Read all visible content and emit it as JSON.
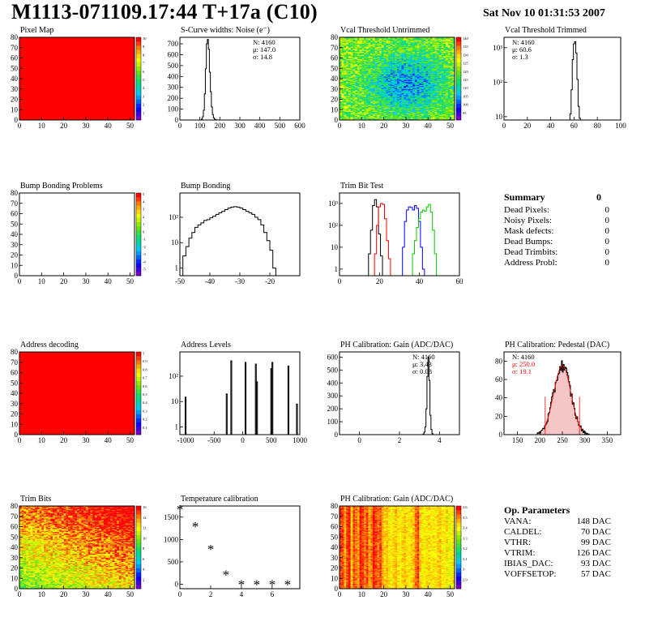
{
  "header": {
    "title": "M1113-071109.17:44 T+17a (C10)",
    "date": "Sat Nov 10 01:31:53 2007"
  },
  "summary": {
    "title": "Summary",
    "total": "0",
    "rows": [
      {
        "label": "Dead Pixels:",
        "value": "0"
      },
      {
        "label": "Noisy Pixels:",
        "value": "0"
      },
      {
        "label": "Mask defects:",
        "value": "0"
      },
      {
        "label": "Dead Bumps:",
        "value": "0"
      },
      {
        "label": "Dead Trimbits:",
        "value": "0"
      },
      {
        "label": "Address Probl:",
        "value": "0"
      }
    ]
  },
  "op_parameters": {
    "title": "Op. Parameters",
    "rows": [
      {
        "label": "VANA:",
        "value": "148 DAC"
      },
      {
        "label": "CALDEL:",
        "value": "70 DAC"
      },
      {
        "label": "VTHR:",
        "value": "99 DAC"
      },
      {
        "label": "VTRIM:",
        "value": "126 DAC"
      },
      {
        "label": "IBIAS_DAC:",
        "value": "93 DAC"
      },
      {
        "label": "VOFFSETOP:",
        "value": "57 DAC"
      }
    ]
  },
  "chart_data": [
    {
      "type": "heatmap",
      "title": "Pixel Map",
      "xlim": [
        0,
        52
      ],
      "ylim": [
        0,
        80
      ],
      "xticks": [
        0,
        10,
        20,
        30,
        40,
        50
      ],
      "yticks": [
        0,
        10,
        20,
        30,
        40,
        50,
        60,
        70,
        80
      ],
      "fill": "uniform",
      "value": 10,
      "zlim": [
        0,
        10
      ],
      "zticks": [
        "1",
        "2",
        "3",
        "4",
        "5",
        "6",
        "7",
        "8",
        "9",
        "10"
      ]
    },
    {
      "type": "histogram",
      "title": "S-Curve widths: Noise (e⁻)",
      "xlim": [
        0,
        600
      ],
      "ylim": [
        0,
        760
      ],
      "ylog": false,
      "xticks": [
        0,
        100,
        200,
        300,
        400,
        500,
        600
      ],
      "yticks": [
        0,
        100,
        200,
        300,
        400,
        500,
        600,
        700
      ],
      "stats": [
        "N: 4160",
        "μ: 147.0",
        "σ: 14.8"
      ],
      "series": [
        {
          "color": "#000000",
          "x": [
            105,
            110,
            115,
            120,
            125,
            130,
            135,
            140,
            145,
            150,
            155,
            160,
            165,
            170,
            175,
            180,
            185,
            190
          ],
          "y": [
            0,
            8,
            30,
            90,
            240,
            470,
            700,
            740,
            650,
            440,
            260,
            120,
            50,
            20,
            8,
            3,
            1,
            0
          ]
        }
      ]
    },
    {
      "type": "heatmap",
      "title": "Vcal Threshold Untrimmed",
      "xlim": [
        0,
        52
      ],
      "ylim": [
        0,
        80
      ],
      "xticks": [
        0,
        10,
        20,
        30,
        40,
        50
      ],
      "yticks": [
        0,
        10,
        20,
        30,
        40,
        50,
        60,
        70,
        80
      ],
      "fill": "noise-blue-center",
      "zlim": [
        90,
        140
      ],
      "zticks": [
        "95",
        "100",
        "105",
        "110",
        "115",
        "120",
        "125",
        "130",
        "135",
        "140"
      ]
    },
    {
      "type": "histogram",
      "title": "Vcal Threshold Trimmed",
      "xlim": [
        0,
        100
      ],
      "ylim": [
        8,
        2000
      ],
      "ylog": true,
      "xticks": [
        0,
        20,
        40,
        60,
        80,
        100
      ],
      "yticks": [
        10,
        100,
        1000
      ],
      "ytick_labels": [
        "10",
        "10²",
        "10³"
      ],
      "stats": [
        "N: 4160",
        "μ: 60.6",
        "σ:  1.3"
      ],
      "series": [
        {
          "color": "#000000",
          "x": [
            56,
            57,
            58,
            59,
            60,
            61,
            62,
            63,
            64,
            65,
            66
          ],
          "y": [
            8,
            12,
            60,
            450,
            1300,
            1500,
            700,
            120,
            20,
            9,
            8
          ]
        }
      ]
    },
    {
      "type": "heatmap",
      "title": "Bump Bonding Problems",
      "xlim": [
        0,
        52
      ],
      "ylim": [
        0,
        80
      ],
      "xticks": [
        0,
        10,
        20,
        30,
        40,
        50
      ],
      "yticks": [
        0,
        10,
        20,
        30,
        40,
        50,
        60,
        70,
        80
      ],
      "fill": "empty",
      "zlim": [
        -5,
        5
      ],
      "zticks": [
        "-5",
        "-4",
        "-3",
        "-2",
        "-1",
        "0",
        "1",
        "2",
        "3",
        "4",
        "5"
      ]
    },
    {
      "type": "histogram",
      "title": "Bump Bonding",
      "xlim": [
        -50,
        -10
      ],
      "ylim": [
        0.5,
        900
      ],
      "ylog": true,
      "xticks": [
        -50,
        -40,
        -30,
        -20
      ],
      "yticks": [
        1,
        10,
        100
      ],
      "ytick_labels": [
        "1",
        "10",
        "10²"
      ],
      "series": [
        {
          "color": "#000000",
          "x": [
            -49.5,
            -48.5,
            -47.5,
            -46.5,
            -45.5,
            -44.5,
            -43.5,
            -42.5,
            -41.5,
            -40.5,
            -39.5,
            -38.5,
            -37.5,
            -36.5,
            -35.5,
            -34.5,
            -33.5,
            -32.5,
            -31.5,
            -30.5,
            -29.5,
            -28.5,
            -27.5,
            -26.5,
            -25.5,
            -24.5,
            -23.5,
            -22.5,
            -21.5,
            -20.5,
            -19.5,
            -18.5,
            -17.5,
            -16.5
          ],
          "y": [
            0.5,
            3,
            7,
            15,
            25,
            40,
            50,
            60,
            75,
            80,
            95,
            110,
            130,
            150,
            170,
            200,
            230,
            250,
            260,
            250,
            230,
            200,
            170,
            150,
            130,
            100,
            80,
            50,
            25,
            12,
            5,
            1,
            0.5,
            0.5
          ]
        }
      ]
    },
    {
      "type": "histogram",
      "title": "Trim Bit Test",
      "xlim": [
        0,
        60
      ],
      "ylim": [
        0.5,
        3000
      ],
      "ylog": true,
      "xticks": [
        0,
        20,
        40,
        60
      ],
      "yticks": [
        1,
        10,
        100,
        1000
      ],
      "ytick_labels": [
        "1",
        "10",
        "10²",
        "10³"
      ],
      "series": [
        {
          "color": "#000000",
          "x": [
            14,
            15,
            16,
            17,
            18,
            19,
            20,
            21,
            22,
            23
          ],
          "y": [
            0.5,
            5,
            60,
            800,
            1500,
            700,
            40,
            4,
            0.5,
            0.5
          ]
        },
        {
          "color": "#ff0000",
          "x": [
            17,
            18,
            19,
            20,
            21,
            22,
            23,
            24,
            25,
            26,
            27
          ],
          "y": [
            0.5,
            5,
            100,
            700,
            1000,
            900,
            200,
            20,
            3,
            0.5,
            0.5
          ]
        },
        {
          "color": "#0000ff",
          "x": [
            31,
            32,
            33,
            34,
            35,
            36,
            37,
            38,
            39,
            40,
            41,
            42,
            43
          ],
          "y": [
            0.5,
            10,
            150,
            500,
            700,
            650,
            500,
            800,
            600,
            150,
            10,
            1,
            0.5
          ]
        },
        {
          "color": "#00cc00",
          "x": [
            36,
            37,
            38,
            39,
            40,
            41,
            42,
            43,
            44,
            45,
            46,
            47,
            48,
            49,
            50
          ],
          "y": [
            0.5,
            5,
            20,
            80,
            200,
            400,
            500,
            450,
            700,
            900,
            400,
            60,
            5,
            0.5,
            0.5
          ]
        }
      ]
    },
    {
      "type": "heatmap",
      "title": "Address decoding",
      "xlim": [
        0,
        52
      ],
      "ylim": [
        0,
        80
      ],
      "xticks": [
        0,
        10,
        20,
        30,
        40,
        50
      ],
      "yticks": [
        0,
        10,
        20,
        30,
        40,
        50,
        60,
        70,
        80
      ],
      "fill": "uniform",
      "value": 1,
      "zlim": [
        0,
        1
      ],
      "zticks": [
        "0.1",
        "0.2",
        "0.3",
        "0.4",
        "0.5",
        "0.6",
        "0.7",
        "0.8",
        "0.9",
        "1"
      ]
    },
    {
      "type": "histogram",
      "title": "Address Levels",
      "xlim": [
        -1100,
        1000
      ],
      "ylim": [
        0.5,
        900
      ],
      "ylog": true,
      "xticks": [
        -1000,
        -500,
        0,
        500,
        1000
      ],
      "yticks": [
        1,
        10,
        100
      ],
      "ytick_labels": [
        "1",
        "10",
        "10²"
      ],
      "series": [
        {
          "color": "#000000",
          "spikes": [
            {
              "x": -1000,
              "y": 15
            },
            {
              "x": -280,
              "y": 20
            },
            {
              "x": -200,
              "y": 400
            },
            {
              "x": 50,
              "y": 350
            },
            {
              "x": 230,
              "y": 300
            },
            {
              "x": 250,
              "y": 60
            },
            {
              "x": 500,
              "y": 200
            },
            {
              "x": 520,
              "y": 350
            },
            {
              "x": 800,
              "y": 250
            },
            {
              "x": 950,
              "y": 8
            }
          ]
        }
      ]
    },
    {
      "type": "histogram",
      "title": "PH Calibration: Gain (ADC/DAC)",
      "xlim": [
        -1,
        5
      ],
      "ylim": [
        0,
        640
      ],
      "ylog": false,
      "xticks": [
        0,
        2,
        4
      ],
      "yticks": [
        0,
        100,
        200,
        300,
        400,
        500,
        600
      ],
      "stats": [
        "N: 4160",
        "μ: 3.43",
        "σ: 0.08"
      ],
      "series": [
        {
          "color": "#000000",
          "x": [
            3.15,
            3.2,
            3.25,
            3.3,
            3.35,
            3.4,
            3.45,
            3.5,
            3.55,
            3.6,
            3.65,
            3.7
          ],
          "y": [
            0,
            5,
            20,
            60,
            200,
            450,
            600,
            420,
            150,
            40,
            8,
            0
          ]
        }
      ]
    },
    {
      "type": "histogram",
      "title": "PH Calibration: Pedestal (DAC)",
      "xlim": [
        120,
        380
      ],
      "ylim": [
        0,
        90
      ],
      "ylog": false,
      "xticks": [
        150,
        200,
        250,
        300,
        350
      ],
      "yticks": [
        0,
        20,
        40,
        60,
        80
      ],
      "stats": [
        "N: 4160",
        "μ: 250.0",
        "σ: 19.1"
      ],
      "stats_colors": [
        "#000000",
        "#ff0000",
        "#ff0000"
      ],
      "fit": {
        "mean": 250.0,
        "sigma": 19.1,
        "amplitude": 75,
        "range": [
          210,
          295
        ],
        "color": "#ff0000"
      },
      "series": [
        {
          "color": "#000000",
          "gauss": {
            "mean": 250,
            "sigma": 19.1,
            "amplitude": 75,
            "from": 195,
            "to": 310,
            "step": 2
          }
        }
      ]
    },
    {
      "type": "heatmap",
      "title": "Trim Bits",
      "xlim": [
        0,
        52
      ],
      "ylim": [
        0,
        80
      ],
      "xticks": [
        0,
        10,
        20,
        30,
        40,
        50
      ],
      "yticks": [
        0,
        10,
        20,
        30,
        40,
        50,
        60,
        70,
        80
      ],
      "fill": "noise-green-yellow",
      "zlim": [
        0,
        16
      ],
      "zticks": [
        "2",
        "4",
        "6",
        "8",
        "10",
        "12",
        "14",
        "16"
      ]
    },
    {
      "type": "scatter",
      "title": "Temperature calibration",
      "xlim": [
        0,
        7.8
      ],
      "ylim": [
        -100,
        1750
      ],
      "xticks": [
        0,
        2,
        4,
        6
      ],
      "yticks": [
        0,
        500,
        1000,
        1500
      ],
      "marker": "*",
      "x": [
        0,
        1,
        2,
        3,
        4,
        5,
        6,
        7
      ],
      "y": [
        1680,
        1300,
        790,
        220,
        0,
        0,
        0,
        0
      ]
    },
    {
      "type": "heatmap",
      "title": "PH Calibration: Gain (ADC/DAC)",
      "xlim": [
        0,
        52
      ],
      "ylim": [
        0,
        80
      ],
      "xticks": [
        0,
        10,
        20,
        30,
        40,
        50
      ],
      "yticks": [
        0,
        10,
        20,
        30,
        40,
        50,
        60,
        70,
        80
      ],
      "fill": "column-stripes",
      "zlim": [
        2.8,
        3.7
      ],
      "zticks": [
        "2.9",
        "3",
        "3.1",
        "3.2",
        "3.3",
        "3.4",
        "3.5",
        "3.6"
      ]
    }
  ]
}
